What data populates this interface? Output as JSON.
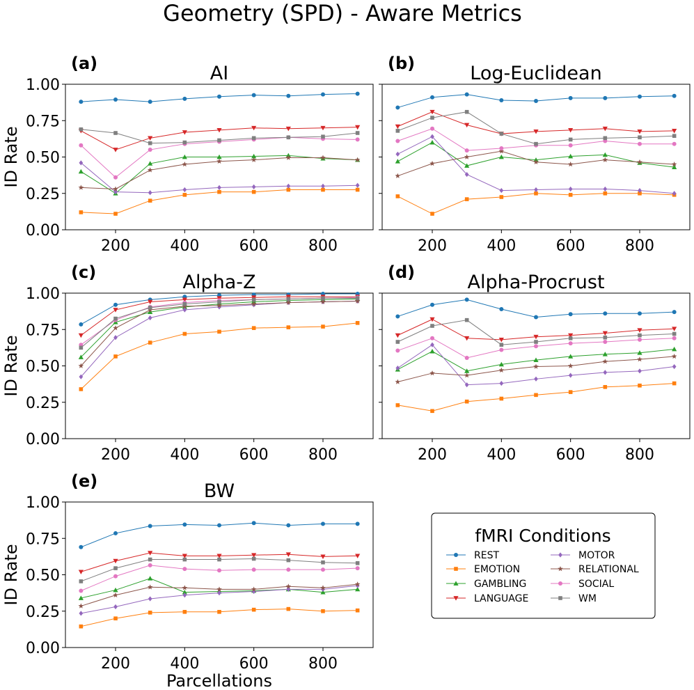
{
  "figure": {
    "title": "Geometry (SPD) - Aware Metrics"
  },
  "legend": {
    "title": "fMRI Conditions"
  },
  "chart_data": [
    {
      "type": "line",
      "letter": "(a)",
      "title": "AI",
      "xlabel": "",
      "ylabel": "ID Rate",
      "x": [
        100,
        200,
        300,
        400,
        500,
        600,
        700,
        800,
        900
      ],
      "xlim": [
        55,
        945
      ],
      "ylim": [
        0,
        1
      ],
      "xticks": [
        200,
        400,
        600,
        800
      ],
      "yticks": [
        0,
        0.25,
        0.5,
        0.75,
        1.0
      ],
      "yticklabels": [
        "0.00",
        "0.25",
        "0.50",
        "0.75",
        "1.00"
      ],
      "show_yticklabels": true,
      "series": [
        {
          "name": "REST",
          "color": "#1f77b4",
          "marker": "circle",
          "values": [
            0.88,
            0.895,
            0.88,
            0.9,
            0.915,
            0.925,
            0.92,
            0.93,
            0.935
          ]
        },
        {
          "name": "EMOTION",
          "color": "#ff7f0e",
          "marker": "square",
          "values": [
            0.12,
            0.11,
            0.2,
            0.24,
            0.26,
            0.26,
            0.275,
            0.275,
            0.275
          ]
        },
        {
          "name": "GAMBLING",
          "color": "#2ca02c",
          "marker": "triangle-up",
          "values": [
            0.4,
            0.25,
            0.455,
            0.5,
            0.5,
            0.505,
            0.51,
            0.49,
            0.48
          ]
        },
        {
          "name": "LANGUAGE",
          "color": "#d62728",
          "marker": "triangle-down",
          "values": [
            0.68,
            0.55,
            0.63,
            0.67,
            0.685,
            0.7,
            0.695,
            0.7,
            0.705
          ]
        },
        {
          "name": "MOTOR",
          "color": "#9467bd",
          "marker": "diamond",
          "values": [
            0.46,
            0.26,
            0.255,
            0.275,
            0.29,
            0.295,
            0.3,
            0.3,
            0.305
          ]
        },
        {
          "name": "RELATIONAL",
          "color": "#8c564b",
          "marker": "star",
          "values": [
            0.29,
            0.28,
            0.41,
            0.45,
            0.47,
            0.48,
            0.495,
            0.495,
            0.48
          ]
        },
        {
          "name": "SOCIAL",
          "color": "#e377c2",
          "marker": "circle",
          "values": [
            0.58,
            0.36,
            0.55,
            0.59,
            0.605,
            0.62,
            0.635,
            0.625,
            0.62
          ]
        },
        {
          "name": "WM",
          "color": "#7f7f7f",
          "marker": "square",
          "values": [
            0.69,
            0.665,
            0.595,
            0.6,
            0.615,
            0.63,
            0.635,
            0.64,
            0.665
          ]
        }
      ]
    },
    {
      "type": "line",
      "letter": "(b)",
      "title": "Log-Euclidean",
      "xlabel": "",
      "ylabel": "",
      "x": [
        100,
        200,
        300,
        400,
        500,
        600,
        700,
        800,
        900
      ],
      "xlim": [
        55,
        945
      ],
      "ylim": [
        0,
        1
      ],
      "xticks": [
        200,
        400,
        600,
        800
      ],
      "yticks": [
        0,
        0.25,
        0.5,
        0.75,
        1.0
      ],
      "yticklabels": [
        "0.00",
        "0.25",
        "0.50",
        "0.75",
        "1.00"
      ],
      "show_yticklabels": false,
      "series": [
        {
          "name": "REST",
          "color": "#1f77b4",
          "marker": "circle",
          "values": [
            0.84,
            0.91,
            0.93,
            0.89,
            0.885,
            0.905,
            0.905,
            0.915,
            0.92
          ]
        },
        {
          "name": "EMOTION",
          "color": "#ff7f0e",
          "marker": "square",
          "values": [
            0.23,
            0.11,
            0.21,
            0.225,
            0.25,
            0.24,
            0.25,
            0.25,
            0.24
          ]
        },
        {
          "name": "GAMBLING",
          "color": "#2ca02c",
          "marker": "triangle-up",
          "values": [
            0.47,
            0.6,
            0.44,
            0.5,
            0.48,
            0.505,
            0.515,
            0.46,
            0.43
          ]
        },
        {
          "name": "LANGUAGE",
          "color": "#d62728",
          "marker": "triangle-down",
          "values": [
            0.71,
            0.81,
            0.72,
            0.66,
            0.675,
            0.685,
            0.695,
            0.675,
            0.68
          ]
        },
        {
          "name": "MOTOR",
          "color": "#9467bd",
          "marker": "diamond",
          "values": [
            0.52,
            0.64,
            0.38,
            0.27,
            0.275,
            0.28,
            0.28,
            0.27,
            0.25
          ]
        },
        {
          "name": "RELATIONAL",
          "color": "#8c564b",
          "marker": "star",
          "values": [
            0.37,
            0.455,
            0.5,
            0.54,
            0.465,
            0.45,
            0.48,
            0.465,
            0.45
          ]
        },
        {
          "name": "SOCIAL",
          "color": "#e377c2",
          "marker": "circle",
          "values": [
            0.61,
            0.695,
            0.545,
            0.56,
            0.58,
            0.58,
            0.61,
            0.59,
            0.59
          ]
        },
        {
          "name": "WM",
          "color": "#7f7f7f",
          "marker": "square",
          "values": [
            0.68,
            0.77,
            0.81,
            0.66,
            0.59,
            0.62,
            0.63,
            0.635,
            0.645
          ]
        }
      ]
    },
    {
      "type": "line",
      "letter": "(c)",
      "title": "Alpha-Z",
      "xlabel": "",
      "ylabel": "ID Rate",
      "x": [
        100,
        200,
        300,
        400,
        500,
        600,
        700,
        800,
        900
      ],
      "xlim": [
        55,
        945
      ],
      "ylim": [
        0,
        1
      ],
      "xticks": [
        200,
        400,
        600,
        800
      ],
      "yticks": [
        0,
        0.25,
        0.5,
        0.75,
        1.0
      ],
      "yticklabels": [
        "0.00",
        "0.25",
        "0.50",
        "0.75",
        "1.00"
      ],
      "show_yticklabels": true,
      "series": [
        {
          "name": "REST",
          "color": "#1f77b4",
          "marker": "circle",
          "values": [
            0.785,
            0.92,
            0.955,
            0.975,
            0.985,
            0.99,
            0.99,
            0.995,
            0.995
          ]
        },
        {
          "name": "EMOTION",
          "color": "#ff7f0e",
          "marker": "square",
          "values": [
            0.34,
            0.565,
            0.66,
            0.72,
            0.735,
            0.76,
            0.765,
            0.77,
            0.795
          ]
        },
        {
          "name": "GAMBLING",
          "color": "#2ca02c",
          "marker": "triangle-up",
          "values": [
            0.56,
            0.8,
            0.87,
            0.905,
            0.925,
            0.94,
            0.95,
            0.955,
            0.96
          ]
        },
        {
          "name": "LANGUAGE",
          "color": "#d62728",
          "marker": "triangle-down",
          "values": [
            0.71,
            0.885,
            0.94,
            0.955,
            0.965,
            0.97,
            0.975,
            0.975,
            0.975
          ]
        },
        {
          "name": "MOTOR",
          "color": "#9467bd",
          "marker": "diamond",
          "values": [
            0.425,
            0.695,
            0.83,
            0.885,
            0.905,
            0.92,
            0.935,
            0.94,
            0.945
          ]
        },
        {
          "name": "RELATIONAL",
          "color": "#8c564b",
          "marker": "star",
          "values": [
            0.5,
            0.76,
            0.885,
            0.91,
            0.915,
            0.925,
            0.935,
            0.94,
            0.945
          ]
        },
        {
          "name": "SOCIAL",
          "color": "#e377c2",
          "marker": "circle",
          "values": [
            0.645,
            0.815,
            0.905,
            0.935,
            0.95,
            0.955,
            0.96,
            0.965,
            0.97
          ]
        },
        {
          "name": "WM",
          "color": "#7f7f7f",
          "marker": "square",
          "values": [
            0.625,
            0.825,
            0.9,
            0.925,
            0.94,
            0.955,
            0.96,
            0.965,
            0.965
          ]
        }
      ]
    },
    {
      "type": "line",
      "letter": "(d)",
      "title": "Alpha-Procrust",
      "xlabel": "",
      "ylabel": "",
      "x": [
        100,
        200,
        300,
        400,
        500,
        600,
        700,
        800,
        900
      ],
      "xlim": [
        55,
        945
      ],
      "ylim": [
        0,
        1
      ],
      "xticks": [
        200,
        400,
        600,
        800
      ],
      "yticks": [
        0,
        0.25,
        0.5,
        0.75,
        1.0
      ],
      "yticklabels": [
        "0.00",
        "0.25",
        "0.50",
        "0.75",
        "1.00"
      ],
      "show_yticklabels": false,
      "series": [
        {
          "name": "REST",
          "color": "#1f77b4",
          "marker": "circle",
          "values": [
            0.84,
            0.92,
            0.955,
            0.89,
            0.835,
            0.855,
            0.86,
            0.86,
            0.87
          ]
        },
        {
          "name": "EMOTION",
          "color": "#ff7f0e",
          "marker": "square",
          "values": [
            0.23,
            0.19,
            0.255,
            0.275,
            0.3,
            0.32,
            0.355,
            0.365,
            0.38
          ]
        },
        {
          "name": "GAMBLING",
          "color": "#2ca02c",
          "marker": "triangle-up",
          "values": [
            0.475,
            0.6,
            0.465,
            0.51,
            0.54,
            0.565,
            0.58,
            0.59,
            0.615
          ]
        },
        {
          "name": "LANGUAGE",
          "color": "#d62728",
          "marker": "triangle-down",
          "values": [
            0.71,
            0.82,
            0.69,
            0.68,
            0.7,
            0.71,
            0.725,
            0.745,
            0.755
          ]
        },
        {
          "name": "MOTOR",
          "color": "#9467bd",
          "marker": "diamond",
          "values": [
            0.485,
            0.645,
            0.37,
            0.38,
            0.41,
            0.435,
            0.455,
            0.465,
            0.495
          ]
        },
        {
          "name": "RELATIONAL",
          "color": "#8c564b",
          "marker": "star",
          "values": [
            0.39,
            0.45,
            0.435,
            0.47,
            0.495,
            0.5,
            0.53,
            0.545,
            0.565
          ]
        },
        {
          "name": "SOCIAL",
          "color": "#e377c2",
          "marker": "circle",
          "values": [
            0.605,
            0.69,
            0.555,
            0.61,
            0.635,
            0.655,
            0.665,
            0.68,
            0.69
          ]
        },
        {
          "name": "WM",
          "color": "#7f7f7f",
          "marker": "square",
          "values": [
            0.665,
            0.775,
            0.815,
            0.645,
            0.665,
            0.69,
            0.695,
            0.71,
            0.72
          ]
        }
      ]
    },
    {
      "type": "line",
      "letter": "(e)",
      "title": "BW",
      "xlabel": "Parcellations",
      "ylabel": "ID Rate",
      "x": [
        100,
        200,
        300,
        400,
        500,
        600,
        700,
        800,
        900
      ],
      "xlim": [
        55,
        945
      ],
      "ylim": [
        0,
        1
      ],
      "xticks": [
        200,
        400,
        600,
        800
      ],
      "yticks": [
        0,
        0.25,
        0.5,
        0.75,
        1.0
      ],
      "yticklabels": [
        "0.00",
        "0.25",
        "0.50",
        "0.75",
        "1.00"
      ],
      "show_yticklabels": true,
      "series": [
        {
          "name": "REST",
          "color": "#1f77b4",
          "marker": "circle",
          "values": [
            0.69,
            0.785,
            0.835,
            0.845,
            0.84,
            0.855,
            0.84,
            0.85,
            0.85
          ]
        },
        {
          "name": "EMOTION",
          "color": "#ff7f0e",
          "marker": "square",
          "values": [
            0.145,
            0.2,
            0.24,
            0.245,
            0.245,
            0.26,
            0.265,
            0.25,
            0.255
          ]
        },
        {
          "name": "GAMBLING",
          "color": "#2ca02c",
          "marker": "triangle-up",
          "values": [
            0.34,
            0.395,
            0.475,
            0.38,
            0.385,
            0.39,
            0.4,
            0.38,
            0.4
          ]
        },
        {
          "name": "LANGUAGE",
          "color": "#d62728",
          "marker": "triangle-down",
          "values": [
            0.52,
            0.595,
            0.65,
            0.63,
            0.63,
            0.635,
            0.64,
            0.625,
            0.63
          ]
        },
        {
          "name": "MOTOR",
          "color": "#9467bd",
          "marker": "diamond",
          "values": [
            0.235,
            0.28,
            0.335,
            0.36,
            0.375,
            0.385,
            0.4,
            0.4,
            0.425
          ]
        },
        {
          "name": "RELATIONAL",
          "color": "#8c564b",
          "marker": "star",
          "values": [
            0.285,
            0.36,
            0.415,
            0.41,
            0.4,
            0.4,
            0.42,
            0.41,
            0.435
          ]
        },
        {
          "name": "SOCIAL",
          "color": "#e377c2",
          "marker": "circle",
          "values": [
            0.39,
            0.49,
            0.565,
            0.54,
            0.53,
            0.535,
            0.535,
            0.535,
            0.545
          ]
        },
        {
          "name": "WM",
          "color": "#7f7f7f",
          "marker": "square",
          "values": [
            0.455,
            0.545,
            0.605,
            0.605,
            0.605,
            0.61,
            0.6,
            0.585,
            0.58
          ]
        }
      ]
    }
  ]
}
